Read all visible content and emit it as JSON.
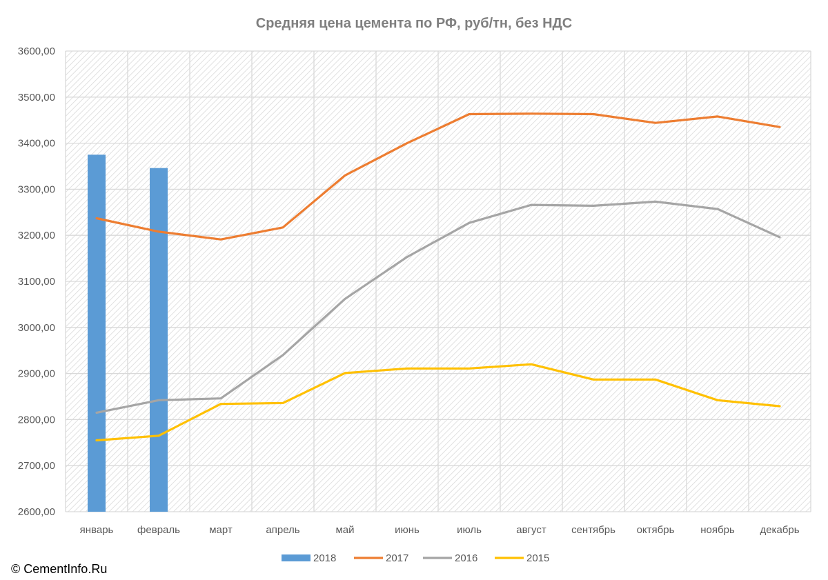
{
  "copyright": "© CementInfo.Ru",
  "chart_data": {
    "type": "bar+line",
    "title": "Средняя цена цемента по РФ, руб/тн, без НДС",
    "xlabel": "",
    "ylabel": "",
    "ylim": [
      2600,
      3600
    ],
    "yticks": [
      "2600,00",
      "2700,00",
      "2800,00",
      "2900,00",
      "3000,00",
      "3100,00",
      "3200,00",
      "3300,00",
      "3400,00",
      "3500,00",
      "3600,00"
    ],
    "ytick_values": [
      2600,
      2700,
      2800,
      2900,
      3000,
      3100,
      3200,
      3300,
      3400,
      3500,
      3600
    ],
    "categories": [
      "январь",
      "февраль",
      "март",
      "апрель",
      "май",
      "июнь",
      "июль",
      "август",
      "сентябрь",
      "октябрь",
      "ноябрь",
      "декабрь"
    ],
    "grid": true,
    "legend_position": "bottom",
    "series": [
      {
        "name": "2018",
        "kind": "bar",
        "color": "#5b9bd5",
        "values": [
          3375,
          3346,
          null,
          null,
          null,
          null,
          null,
          null,
          null,
          null,
          null,
          null
        ]
      },
      {
        "name": "2017",
        "kind": "line",
        "color": "#ed7d31",
        "values": [
          3237,
          3208,
          3191,
          3217,
          3330,
          3400,
          3463,
          3464,
          3463,
          3444,
          3458,
          3435
        ]
      },
      {
        "name": "2016",
        "kind": "line",
        "color": "#a5a5a5",
        "values": [
          2815,
          2842,
          2846,
          2940,
          3062,
          3153,
          3227,
          3266,
          3264,
          3273,
          3257,
          3196
        ]
      },
      {
        "name": "2015",
        "kind": "line",
        "color": "#ffc000",
        "values": [
          2755,
          2765,
          2834,
          2836,
          2901,
          2911,
          2911,
          2920,
          2887,
          2887,
          2842,
          2829
        ]
      }
    ]
  }
}
